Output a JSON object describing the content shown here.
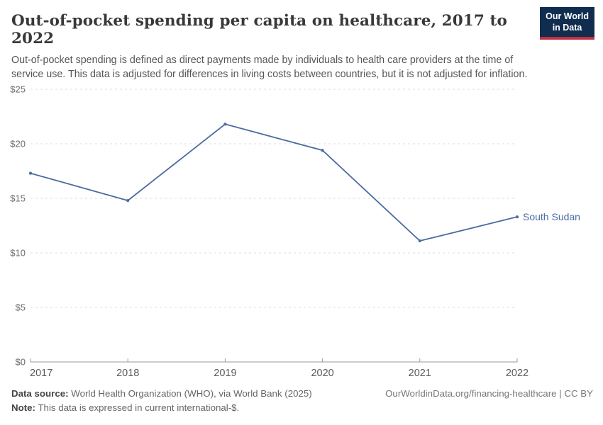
{
  "header": {
    "title": "Out-of-pocket spending per capita on healthcare, 2017 to 2022",
    "subtitle": "Out-of-pocket spending is defined as direct payments made by individuals to health care providers at the time of service use. This data is adjusted for differences in living costs between countries, but it is not adjusted for inflation.",
    "logo": {
      "line1": "Our World",
      "line2": "in Data",
      "bg_color": "#102d50",
      "accent_color": "#c0313f"
    }
  },
  "chart_data": {
    "type": "line",
    "title": "Out-of-pocket spending per capita on healthcare, 2017 to 2022",
    "x": [
      2017,
      2018,
      2019,
      2020,
      2021,
      2022
    ],
    "series": [
      {
        "name": "South Sudan",
        "values": [
          17.3,
          14.8,
          21.8,
          19.4,
          11.1,
          13.3
        ],
        "color": "#4c6ba0"
      }
    ],
    "ylim": [
      0,
      25
    ],
    "yticks": [
      0,
      5,
      10,
      15,
      20,
      25
    ],
    "ytick_labels": [
      "$0",
      "$5",
      "$10",
      "$15",
      "$20",
      "$25"
    ],
    "xlabel": "",
    "ylabel": "",
    "grid": "horizontal-dashed",
    "legend": "end-of-line-label",
    "colors": {
      "gridline": "#dedede",
      "axis": "#9a9a9a",
      "ytick_text": "#6b6b6b",
      "xtick_text": "#5a5a5a"
    }
  },
  "footer": {
    "datasource_label": "Data source:",
    "datasource_text": " World Health Organization (WHO), via World Bank (2025)",
    "note_label": "Note:",
    "note_text": " This data is expressed in current international-$.",
    "credit": "OurWorldinData.org/financing-healthcare | CC BY"
  }
}
